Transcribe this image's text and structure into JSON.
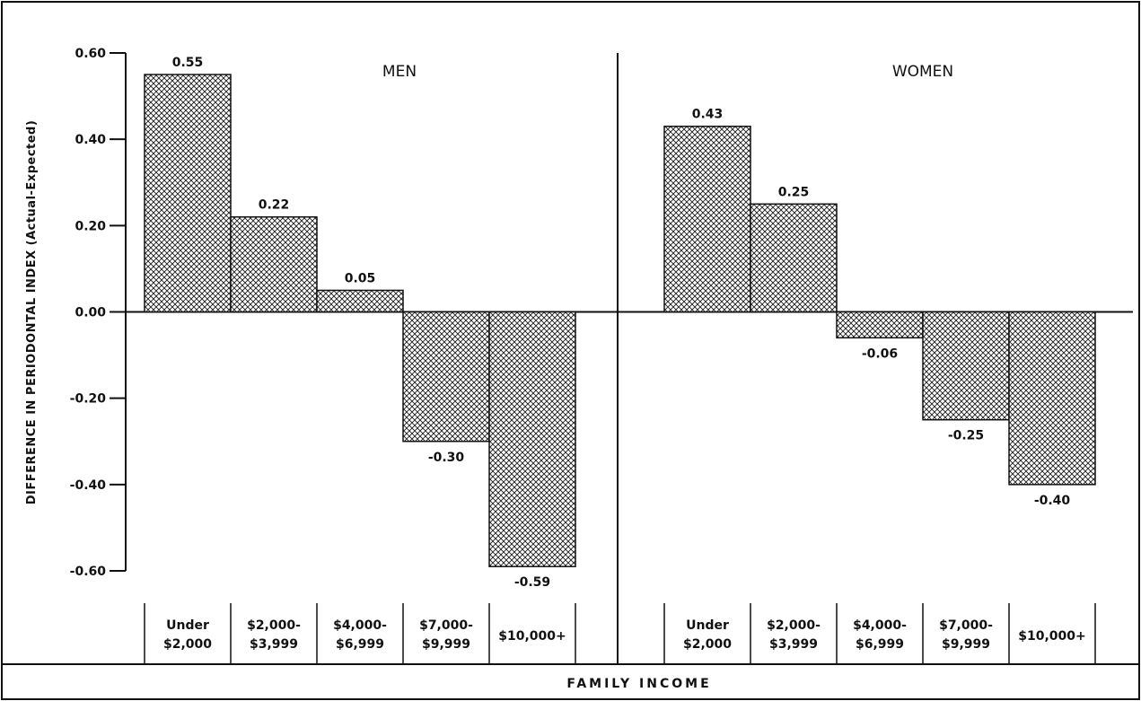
{
  "chart_data": {
    "type": "bar",
    "ylabel": "DIFFERENCE IN PERIODONTAL INDEX (Actual-Expected)",
    "xlabel": "FAMILY INCOME",
    "ylim": [
      -0.6,
      0.6
    ],
    "yticks": [
      "0.60",
      "0.40",
      "0.20",
      "0.00",
      "-0.20",
      "-0.40",
      "-0.60"
    ],
    "ytick_values": [
      0.6,
      0.4,
      0.2,
      0.0,
      -0.2,
      -0.4,
      -0.6
    ],
    "grid": false,
    "categories": [
      [
        "Under",
        "$2,000"
      ],
      [
        "$2,000-",
        "$3,999"
      ],
      [
        "$4,000-",
        "$6,999"
      ],
      [
        "$7,000-",
        "$9,999"
      ],
      [
        "$10,000+"
      ]
    ],
    "panels": [
      {
        "title": "MEN",
        "values": [
          0.55,
          0.22,
          0.05,
          -0.3,
          -0.59
        ],
        "value_labels": [
          "0.55",
          "0.22",
          "0.05",
          "-0.30",
          "-0.59"
        ]
      },
      {
        "title": "WOMEN",
        "values": [
          0.43,
          0.25,
          -0.06,
          -0.25,
          -0.4
        ],
        "value_labels": [
          "0.43",
          "0.25",
          "-0.06",
          "-0.25",
          "-0.40"
        ]
      }
    ]
  },
  "colors": {
    "ink": "#111111",
    "hatch": "#1a1a1a",
    "background": "#ffffff"
  }
}
